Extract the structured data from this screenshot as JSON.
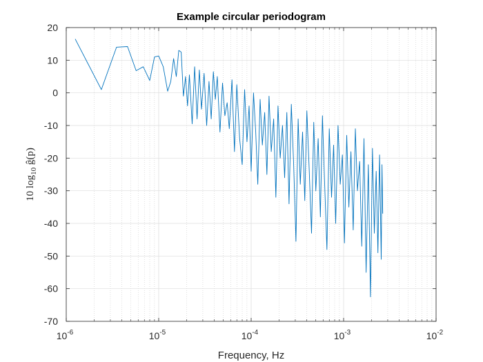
{
  "chart_data": {
    "type": "line",
    "title": "Example circular periodogram",
    "xlabel": "Frequency, Hz",
    "ylabel": {
      "prefix": "10 log",
      "subscript": "10",
      "suffix": " ĝ(p)"
    },
    "xscale": "log",
    "xlim": [
      1e-06,
      0.01
    ],
    "ylim": [
      -70,
      20
    ],
    "grid": true,
    "minor_grid_x": true,
    "x_ticks": [
      {
        "base": "10",
        "exp": "-6",
        "value": 1e-06
      },
      {
        "base": "10",
        "exp": "-5",
        "value": 1e-05
      },
      {
        "base": "10",
        "exp": "-4",
        "value": 0.0001
      },
      {
        "base": "10",
        "exp": "-3",
        "value": 0.001
      },
      {
        "base": "10",
        "exp": "-2",
        "value": 0.01
      }
    ],
    "y_ticks": [
      "20",
      "10",
      "0",
      "-10",
      "-20",
      "-30",
      "-40",
      "-50",
      "-60",
      "-70"
    ],
    "y_tick_values": [
      20,
      10,
      0,
      -10,
      -20,
      -30,
      -40,
      -50,
      -60,
      -70
    ],
    "line_color": "#0072BD",
    "series": [
      {
        "x": [
          1.25e-06,
          2.4e-06,
          3.5e-06,
          4.6e-06,
          5.7e-06,
          6.8e-06,
          8e-06,
          9e-06,
          1e-05,
          1.12e-05,
          1.25e-05,
          1.35e-05,
          1.45e-05,
          1.55e-05,
          1.65e-05,
          1.75e-05,
          1.85e-05,
          1.95e-05,
          2.05e-05,
          2.15e-05,
          2.3e-05,
          2.45e-05,
          2.6e-05,
          2.75e-05,
          2.9e-05,
          3.1e-05,
          3.3e-05,
          3.5e-05,
          3.7e-05,
          3.9e-05,
          4.1e-05,
          4.3e-05,
          4.6e-05,
          4.9e-05,
          5.2e-05,
          5.5e-05,
          5.8e-05,
          6.2e-05,
          6.6e-05,
          7e-05,
          7.5e-05,
          8e-05,
          8.5e-05,
          9e-05,
          9.5e-05,
          0.0001,
          0.000106,
          0.000112,
          0.000118,
          0.000125,
          0.000132,
          0.00014,
          0.000148,
          0.000156,
          0.000165,
          0.000175,
          0.000185,
          0.000195,
          0.000206,
          0.000218,
          0.00023,
          0.000243,
          0.000257,
          0.000272,
          0.000288,
          0.000305,
          0.000322,
          0.00034,
          0.00036,
          0.00038,
          0.0004,
          0.000425,
          0.00045,
          0.000475,
          0.0005,
          0.00053,
          0.00056,
          0.00059,
          0.00062,
          0.00066,
          0.0007,
          0.00074,
          0.00078,
          0.00082,
          0.00087,
          0.00092,
          0.00097,
          0.00102,
          0.00108,
          0.00114,
          0.0012,
          0.00127,
          0.00134,
          0.00141,
          0.00149,
          0.00157,
          0.00166,
          0.00175,
          0.00185,
          0.00195,
          0.00205,
          0.00215,
          0.00225,
          0.00235,
          0.00245,
          0.00255,
          0.0026,
          0.00265
        ],
        "y": [
          16.5,
          1.0,
          14.0,
          14.2,
          6.8,
          8.0,
          3.8,
          11.0,
          11.3,
          8.0,
          0.5,
          3.5,
          10.5,
          5.0,
          13.0,
          12.5,
          -1.0,
          5.0,
          -4.0,
          5.5,
          -9.5,
          8.0,
          -8.0,
          7.0,
          -5.0,
          6.0,
          -10.0,
          3.5,
          -8.0,
          6.5,
          -2.0,
          5.0,
          -12.0,
          3.0,
          -7.0,
          -3.0,
          -11.0,
          4.0,
          -18.0,
          2.5,
          -14.0,
          -22.0,
          1.0,
          -15.0,
          -4.0,
          -24.0,
          0.0,
          -12.0,
          -28.0,
          -2.0,
          -16.0,
          -6.0,
          -25.0,
          -1.0,
          -18.0,
          -8.0,
          -32.0,
          -4.0,
          -20.0,
          -10.0,
          -26.0,
          -6.0,
          -34.0,
          -3.5,
          -22.0,
          -45.5,
          -8.0,
          -28.0,
          -12.0,
          -33.0,
          -5.5,
          -24.0,
          -43.0,
          -9.0,
          -30.0,
          -14.0,
          -38.0,
          -7.0,
          -26.0,
          -48.0,
          -11.0,
          -32.0,
          -16.0,
          -40.0,
          -10.0,
          -28.0,
          -19.0,
          -46.0,
          -13.0,
          -35.0,
          -18.0,
          -42.0,
          -11.0,
          -30.0,
          -21.0,
          -47.0,
          -14.0,
          -55.0,
          -22.0,
          -62.5,
          -17.0,
          -43.0,
          -24.0,
          -49.0,
          -19.0,
          -51.0,
          -22.0,
          -37.0
        ]
      }
    ]
  }
}
